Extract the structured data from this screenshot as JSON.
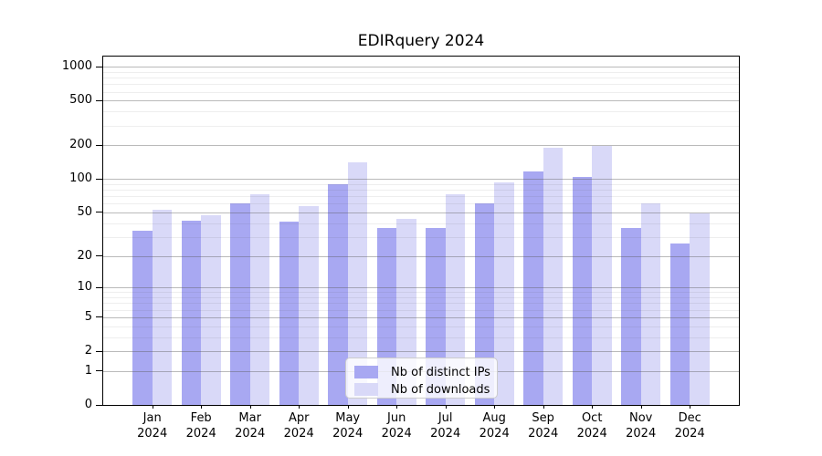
{
  "chart_data": {
    "type": "bar",
    "title": "EDIRquery 2024",
    "categories": [
      {
        "month": "Jan",
        "year": "2024"
      },
      {
        "month": "Feb",
        "year": "2024"
      },
      {
        "month": "Mar",
        "year": "2024"
      },
      {
        "month": "Apr",
        "year": "2024"
      },
      {
        "month": "May",
        "year": "2024"
      },
      {
        "month": "Jun",
        "year": "2024"
      },
      {
        "month": "Jul",
        "year": "2024"
      },
      {
        "month": "Aug",
        "year": "2024"
      },
      {
        "month": "Sep",
        "year": "2024"
      },
      {
        "month": "Oct",
        "year": "2024"
      },
      {
        "month": "Nov",
        "year": "2024"
      },
      {
        "month": "Dec",
        "year": "2024"
      }
    ],
    "series": [
      {
        "name": "Nb of distinct IPs",
        "color": "#a8a8f2",
        "values": [
          34,
          42,
          60,
          41,
          90,
          36,
          36,
          60,
          116,
          105,
          36,
          26
        ]
      },
      {
        "name": "Nb of downloads",
        "color": "#d9d9f8",
        "values": [
          53,
          47,
          73,
          57,
          140,
          44,
          73,
          94,
          192,
          196,
          60,
          49
        ]
      }
    ],
    "xlabel": "",
    "ylabel": "",
    "y_scale": "symlog-log1p",
    "y_ticks": [
      0,
      1,
      2,
      5,
      10,
      20,
      50,
      100,
      200,
      500,
      1000
    ],
    "y_minor_ticks": [
      3,
      4,
      6,
      7,
      8,
      9,
      30,
      40,
      60,
      70,
      80,
      90,
      300,
      400,
      600,
      700,
      800,
      900
    ],
    "y_axis_top_value": 1232,
    "grid": true,
    "grid_major_color": "#b3b3b3",
    "grid_minor_color": "#ebebeb",
    "legend_position": "lower-center"
  }
}
